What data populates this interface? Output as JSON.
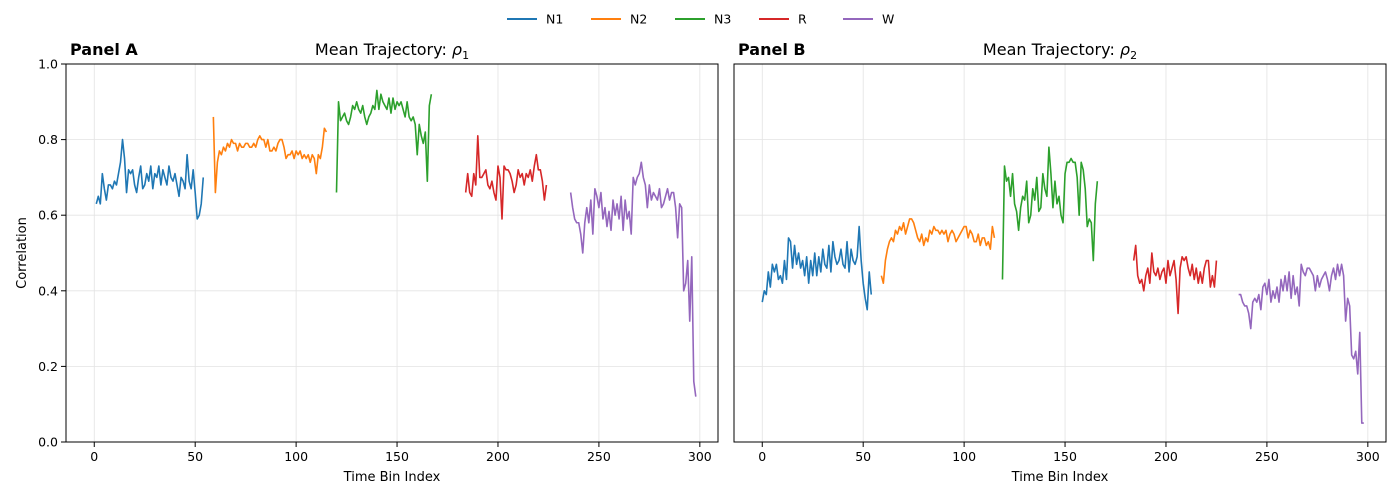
{
  "chart_data": {
    "type": "line",
    "legend": {
      "placement": "top-center",
      "entries": [
        {
          "name": "N1",
          "color": "#1f77b4"
        },
        {
          "name": "N2",
          "color": "#ff7f0e"
        },
        {
          "name": "N3",
          "color": "#2ca02c"
        },
        {
          "name": "R",
          "color": "#d62728"
        },
        {
          "name": "W",
          "color": "#9467bd"
        }
      ]
    },
    "ylabel": "Correlation",
    "panels": [
      {
        "panel_label": "Panel A",
        "title_main": "Mean Trajectory: ",
        "title_symbol": "ρ",
        "title_sub": "1",
        "xlabel": "Time Bin Index",
        "xlim": [
          -14,
          309
        ],
        "ylim": [
          0.0,
          1.0
        ],
        "xticks": [
          0,
          50,
          100,
          150,
          200,
          250,
          300
        ],
        "yticks": [
          "0.0",
          "0.2",
          "0.4",
          "0.6",
          "0.8",
          "1.0"
        ],
        "show_yticks": true,
        "grid": true,
        "series": [
          {
            "name": "N1",
            "color": "#1f77b4",
            "x_start": 1,
            "values": [
              0.63,
              0.65,
              0.63,
              0.71,
              0.67,
              0.64,
              0.68,
              0.68,
              0.67,
              0.69,
              0.68,
              0.71,
              0.74,
              0.8,
              0.75,
              0.66,
              0.72,
              0.71,
              0.72,
              0.68,
              0.66,
              0.7,
              0.73,
              0.67,
              0.68,
              0.71,
              0.69,
              0.73,
              0.67,
              0.71,
              0.7,
              0.73,
              0.68,
              0.72,
              0.7,
              0.68,
              0.73,
              0.7,
              0.69,
              0.71,
              0.68,
              0.65,
              0.7,
              0.69,
              0.67,
              0.76,
              0.69,
              0.67,
              0.72,
              0.66,
              0.59,
              0.6,
              0.63,
              0.7
            ]
          },
          {
            "name": "N2",
            "color": "#ff7f0e",
            "x_start": 59,
            "values": [
              0.86,
              0.66,
              0.74,
              0.77,
              0.76,
              0.78,
              0.77,
              0.79,
              0.78,
              0.8,
              0.79,
              0.79,
              0.77,
              0.79,
              0.78,
              0.78,
              0.79,
              0.79,
              0.78,
              0.78,
              0.79,
              0.78,
              0.8,
              0.81,
              0.8,
              0.8,
              0.78,
              0.8,
              0.77,
              0.77,
              0.78,
              0.77,
              0.79,
              0.8,
              0.8,
              0.78,
              0.75,
              0.76,
              0.76,
              0.77,
              0.75,
              0.77,
              0.76,
              0.77,
              0.75,
              0.76,
              0.75,
              0.76,
              0.74,
              0.76,
              0.75,
              0.71,
              0.76,
              0.75,
              0.78,
              0.83,
              0.82
            ]
          },
          {
            "name": "N3",
            "color": "#2ca02c",
            "x_start": 120,
            "values": [
              0.66,
              0.9,
              0.85,
              0.86,
              0.87,
              0.85,
              0.84,
              0.86,
              0.89,
              0.88,
              0.9,
              0.88,
              0.87,
              0.89,
              0.86,
              0.84,
              0.86,
              0.87,
              0.89,
              0.88,
              0.93,
              0.88,
              0.92,
              0.9,
              0.89,
              0.88,
              0.91,
              0.87,
              0.91,
              0.88,
              0.9,
              0.89,
              0.9,
              0.88,
              0.86,
              0.9,
              0.86,
              0.85,
              0.86,
              0.84,
              0.76,
              0.84,
              0.81,
              0.79,
              0.82,
              0.69,
              0.89,
              0.92
            ]
          },
          {
            "name": "R",
            "color": "#d62728",
            "x_start": 184,
            "values": [
              0.66,
              0.71,
              0.66,
              0.65,
              0.71,
              0.68,
              0.81,
              0.7,
              0.7,
              0.71,
              0.72,
              0.68,
              0.67,
              0.69,
              0.66,
              0.64,
              0.73,
              0.7,
              0.59,
              0.73,
              0.72,
              0.72,
              0.71,
              0.69,
              0.66,
              0.68,
              0.72,
              0.7,
              0.71,
              0.68,
              0.71,
              0.7,
              0.72,
              0.69,
              0.73,
              0.76,
              0.72,
              0.72,
              0.69,
              0.64,
              0.68
            ]
          },
          {
            "name": "W",
            "color": "#9467bd",
            "x_start": 236,
            "values": [
              0.66,
              0.62,
              0.59,
              0.58,
              0.58,
              0.55,
              0.5,
              0.58,
              0.62,
              0.58,
              0.64,
              0.55,
              0.67,
              0.65,
              0.62,
              0.66,
              0.59,
              0.62,
              0.57,
              0.61,
              0.56,
              0.64,
              0.6,
              0.63,
              0.59,
              0.65,
              0.56,
              0.64,
              0.59,
              0.61,
              0.55,
              0.7,
              0.68,
              0.7,
              0.71,
              0.74,
              0.7,
              0.68,
              0.62,
              0.68,
              0.64,
              0.66,
              0.65,
              0.64,
              0.67,
              0.62,
              0.63,
              0.65,
              0.67,
              0.64,
              0.66,
              0.66,
              0.62,
              0.54,
              0.63,
              0.62,
              0.4,
              0.42,
              0.48,
              0.32,
              0.49,
              0.16,
              0.12
            ]
          }
        ]
      },
      {
        "panel_label": "Panel B",
        "title_main": "Mean Trajectory: ",
        "title_symbol": "ρ",
        "title_sub": "2",
        "xlabel": "Time Bin Index",
        "xlim": [
          -14,
          309
        ],
        "ylim": [
          0.0,
          1.0
        ],
        "xticks": [
          0,
          50,
          100,
          150,
          200,
          250,
          300
        ],
        "yticks": [
          "0.0",
          "0.2",
          "0.4",
          "0.6",
          "0.8",
          "1.0"
        ],
        "show_yticks": false,
        "grid": true,
        "series": [
          {
            "name": "N1",
            "color": "#1f77b4",
            "x_start": 0,
            "values": [
              0.37,
              0.4,
              0.39,
              0.45,
              0.41,
              0.47,
              0.45,
              0.47,
              0.43,
              0.44,
              0.42,
              0.48,
              0.43,
              0.54,
              0.53,
              0.46,
              0.52,
              0.47,
              0.5,
              0.46,
              0.48,
              0.44,
              0.49,
              0.42,
              0.48,
              0.44,
              0.5,
              0.44,
              0.49,
              0.45,
              0.51,
              0.47,
              0.46,
              0.52,
              0.45,
              0.53,
              0.49,
              0.47,
              0.48,
              0.51,
              0.47,
              0.46,
              0.53,
              0.45,
              0.51,
              0.48,
              0.47,
              0.49,
              0.57,
              0.48,
              0.42,
              0.38,
              0.35,
              0.45,
              0.39
            ]
          },
          {
            "name": "N2",
            "color": "#ff7f0e",
            "x_start": 59,
            "values": [
              0.44,
              0.42,
              0.48,
              0.51,
              0.53,
              0.54,
              0.53,
              0.56,
              0.55,
              0.57,
              0.56,
              0.58,
              0.55,
              0.57,
              0.59,
              0.59,
              0.58,
              0.56,
              0.54,
              0.53,
              0.55,
              0.52,
              0.54,
              0.53,
              0.56,
              0.55,
              0.57,
              0.56,
              0.56,
              0.55,
              0.56,
              0.55,
              0.56,
              0.53,
              0.55,
              0.56,
              0.55,
              0.53,
              0.54,
              0.55,
              0.56,
              0.57,
              0.57,
              0.54,
              0.56,
              0.55,
              0.53,
              0.53,
              0.55,
              0.52,
              0.54,
              0.54,
              0.52,
              0.53,
              0.51,
              0.57,
              0.54
            ]
          },
          {
            "name": "N3",
            "color": "#2ca02c",
            "x_start": 119,
            "values": [
              0.43,
              0.73,
              0.69,
              0.7,
              0.65,
              0.71,
              0.63,
              0.61,
              0.56,
              0.62,
              0.65,
              0.64,
              0.69,
              0.58,
              0.6,
              0.67,
              0.64,
              0.7,
              0.61,
              0.62,
              0.71,
              0.67,
              0.65,
              0.78,
              0.71,
              0.62,
              0.69,
              0.63,
              0.65,
              0.6,
              0.58,
              0.71,
              0.74,
              0.74,
              0.75,
              0.74,
              0.74,
              0.7,
              0.6,
              0.74,
              0.72,
              0.67,
              0.57,
              0.59,
              0.58,
              0.48,
              0.63,
              0.69
            ]
          },
          {
            "name": "R",
            "color": "#d62728",
            "x_start": 184,
            "values": [
              0.48,
              0.52,
              0.44,
              0.42,
              0.43,
              0.4,
              0.44,
              0.46,
              0.42,
              0.5,
              0.45,
              0.44,
              0.46,
              0.43,
              0.45,
              0.46,
              0.42,
              0.48,
              0.44,
              0.46,
              0.48,
              0.43,
              0.34,
              0.46,
              0.49,
              0.48,
              0.49,
              0.46,
              0.44,
              0.47,
              0.43,
              0.46,
              0.42,
              0.45,
              0.42,
              0.46,
              0.48,
              0.48,
              0.41,
              0.44,
              0.41,
              0.48
            ]
          },
          {
            "name": "W",
            "color": "#9467bd",
            "x_start": 236,
            "values": [
              0.39,
              0.39,
              0.37,
              0.36,
              0.36,
              0.34,
              0.3,
              0.37,
              0.38,
              0.37,
              0.39,
              0.35,
              0.41,
              0.42,
              0.39,
              0.43,
              0.37,
              0.4,
              0.38,
              0.41,
              0.37,
              0.43,
              0.4,
              0.44,
              0.4,
              0.45,
              0.38,
              0.44,
              0.39,
              0.41,
              0.36,
              0.47,
              0.45,
              0.44,
              0.46,
              0.46,
              0.45,
              0.44,
              0.4,
              0.44,
              0.41,
              0.43,
              0.44,
              0.45,
              0.43,
              0.4,
              0.44,
              0.46,
              0.43,
              0.47,
              0.44,
              0.47,
              0.44,
              0.32,
              0.38,
              0.36,
              0.23,
              0.22,
              0.24,
              0.18,
              0.29,
              0.05,
              0.05
            ]
          }
        ]
      }
    ]
  }
}
